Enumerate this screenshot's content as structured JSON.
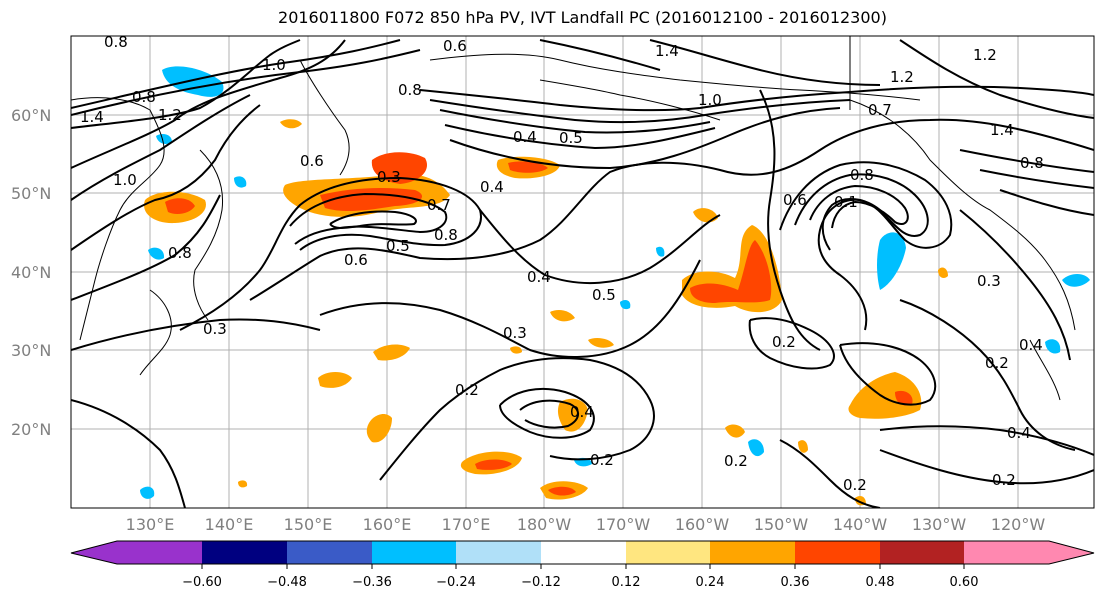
{
  "title": "2016011800 F072 850 hPa PV, IVT Landfall PC (2016012100 - 2016012300)",
  "map": {
    "lat_labels": [
      "60°N",
      "50°N",
      "40°N",
      "30°N",
      "20°N"
    ],
    "lon_labels": [
      "130°E",
      "140°E",
      "150°E",
      "160°E",
      "170°E",
      "180°W",
      "170°W",
      "160°W",
      "150°W",
      "140°W",
      "130°W",
      "120°W"
    ],
    "contour_labels": [
      "0.8",
      "0.6",
      "1.4",
      "1.0",
      "0.8",
      "1.4",
      "1.2",
      "1.2",
      "0.4",
      "0.5",
      "1.0",
      "0.6",
      "0.3",
      "0.4",
      "0.7",
      "0.8",
      "0.5",
      "0.6",
      "1.0",
      "0.8",
      "0.4",
      "0.5",
      "0.3",
      "0.3",
      "0.2",
      "0.4",
      "0.2",
      "0.2",
      "0.2",
      "0.6",
      "0.8",
      "0.1",
      "0.3",
      "0.2",
      "0.4",
      "0.2",
      "0.2",
      "0.4",
      "1.4",
      "0.8",
      "0.7",
      "0.8",
      "1.2"
    ]
  },
  "colorbar": {
    "colors": [
      "#9932cc",
      "#000080",
      "#3a5bc7",
      "#00bfff",
      "#b0e0f8",
      "#ffffff",
      "#ffe680",
      "#ffa500",
      "#ff4500",
      "#b22222",
      "#ff88b0"
    ],
    "tick_labels": [
      "−0.60",
      "−0.48",
      "−0.36",
      "−0.24",
      "−0.12",
      "0.12",
      "0.24",
      "0.36",
      "0.48",
      "0.60"
    ]
  }
}
